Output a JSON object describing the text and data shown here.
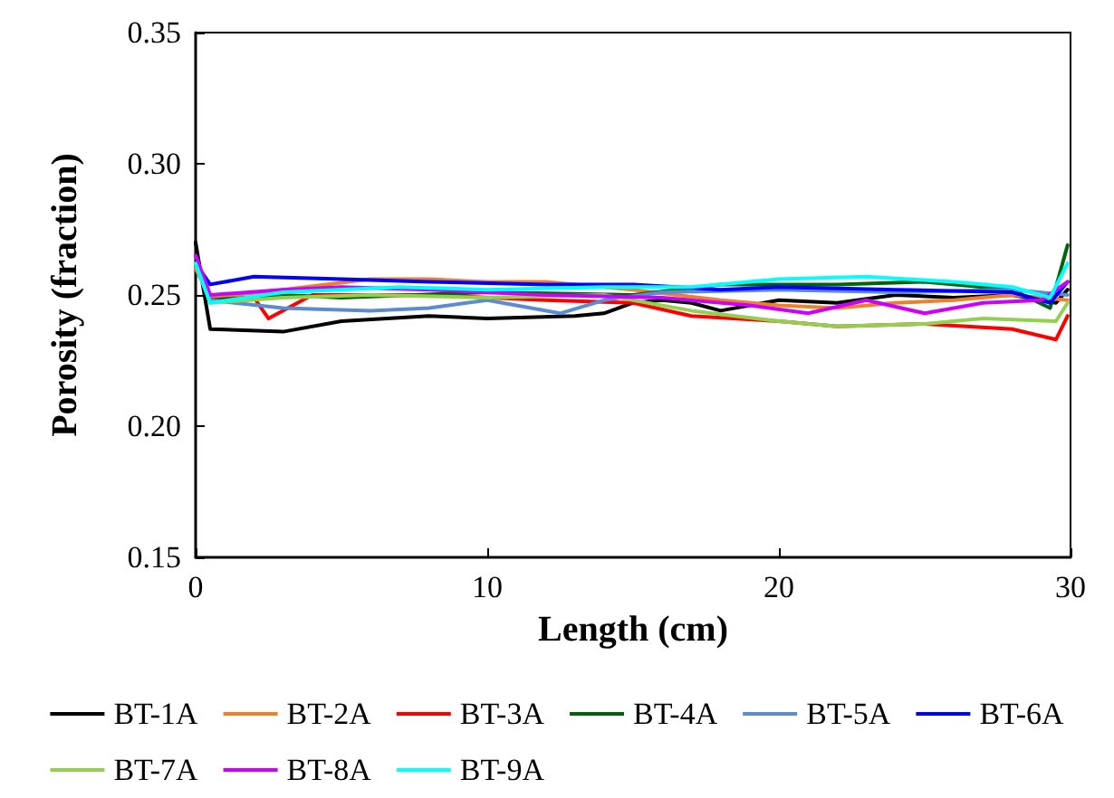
{
  "chart_data": {
    "type": "line",
    "xlabel": "Length (cm)",
    "ylabel": "Porosity (fraction)",
    "xlim": [
      0,
      30
    ],
    "xticks": [
      0,
      10,
      20,
      30
    ],
    "ylim": [
      0.15,
      0.35
    ],
    "yticks": [
      {
        "value": 0.15,
        "label": "0.15"
      },
      {
        "value": 0.2,
        "label": "0.20"
      },
      {
        "value": 0.25,
        "label": "0.25"
      },
      {
        "value": 0.3,
        "label": "0.30"
      },
      {
        "value": 0.35,
        "label": "0.35"
      }
    ],
    "grid": false,
    "legend": "bottom",
    "marker": "none",
    "line_style": "solid",
    "series": [
      {
        "name": "BT-1A",
        "color": "#000000",
        "x": [
          0,
          0.5,
          3,
          5,
          8,
          10,
          13,
          14,
          15,
          16,
          17,
          18,
          20,
          22,
          24,
          26,
          28,
          29.5,
          29.9
        ],
        "values": [
          0.27,
          0.237,
          0.236,
          0.24,
          0.242,
          0.241,
          0.242,
          0.243,
          0.247,
          0.248,
          0.247,
          0.244,
          0.248,
          0.247,
          0.25,
          0.249,
          0.25,
          0.247,
          0.252
        ]
      },
      {
        "name": "BT-2A",
        "color": "#f07f2a",
        "x": [
          0,
          0.5,
          3,
          6,
          8,
          10,
          12,
          15,
          18,
          20,
          22,
          24,
          26,
          28,
          29.9
        ],
        "values": [
          0.26,
          0.249,
          0.252,
          0.256,
          0.256,
          0.255,
          0.255,
          0.252,
          0.248,
          0.246,
          0.245,
          0.247,
          0.248,
          0.25,
          0.248
        ]
      },
      {
        "name": "BT-3A",
        "color": "#ff0000",
        "x": [
          0,
          0.5,
          2,
          2.5,
          4,
          8,
          12,
          15,
          17,
          20,
          22,
          25,
          28,
          29.5,
          29.9
        ],
        "values": [
          0.262,
          0.248,
          0.249,
          0.241,
          0.25,
          0.25,
          0.248,
          0.247,
          0.242,
          0.24,
          0.238,
          0.239,
          0.237,
          0.233,
          0.242
        ]
      },
      {
        "name": "BT-4A",
        "color": "#00640a",
        "x": [
          0,
          0.5,
          3,
          5,
          10,
          15,
          18,
          22,
          25,
          28,
          29.3,
          29.9
        ],
        "values": [
          0.262,
          0.248,
          0.25,
          0.249,
          0.251,
          0.25,
          0.254,
          0.254,
          0.255,
          0.252,
          0.245,
          0.269
        ]
      },
      {
        "name": "BT-5A",
        "color": "#5b8bd0",
        "x": [
          0,
          0.5,
          3,
          6,
          8,
          10,
          12.5,
          14,
          16,
          20,
          24,
          28,
          29.9
        ],
        "values": [
          0.262,
          0.248,
          0.245,
          0.244,
          0.245,
          0.248,
          0.243,
          0.248,
          0.251,
          0.252,
          0.251,
          0.252,
          0.25
        ]
      },
      {
        "name": "BT-6A",
        "color": "#0000ff",
        "x": [
          0,
          0.5,
          2,
          5,
          8,
          12,
          15,
          18,
          20,
          24,
          28,
          29.3,
          29.9
        ],
        "values": [
          0.262,
          0.254,
          0.257,
          0.256,
          0.255,
          0.254,
          0.254,
          0.252,
          0.253,
          0.252,
          0.251,
          0.247,
          0.255
        ]
      },
      {
        "name": "BT-7A",
        "color": "#92d050",
        "x": [
          0,
          0.5,
          3,
          6,
          10,
          14,
          17,
          20,
          22,
          25,
          27,
          29.5,
          29.9
        ],
        "values": [
          0.262,
          0.247,
          0.249,
          0.25,
          0.249,
          0.25,
          0.244,
          0.24,
          0.238,
          0.239,
          0.241,
          0.24,
          0.247
        ]
      },
      {
        "name": "BT-8A",
        "color": "#cc00ff",
        "x": [
          0,
          0.5,
          3,
          5,
          8,
          12,
          16,
          19,
          21,
          23,
          25,
          27,
          29,
          29.9
        ],
        "values": [
          0.265,
          0.25,
          0.252,
          0.253,
          0.252,
          0.25,
          0.249,
          0.246,
          0.243,
          0.248,
          0.243,
          0.247,
          0.248,
          0.255
        ]
      },
      {
        "name": "BT-9A",
        "color": "#00ffff",
        "x": [
          0,
          0.5,
          3,
          7,
          10,
          14,
          17,
          20,
          23,
          26,
          28,
          29.3,
          29.9
        ],
        "values": [
          0.262,
          0.247,
          0.251,
          0.253,
          0.252,
          0.253,
          0.253,
          0.256,
          0.257,
          0.255,
          0.253,
          0.249,
          0.262
        ]
      }
    ]
  }
}
